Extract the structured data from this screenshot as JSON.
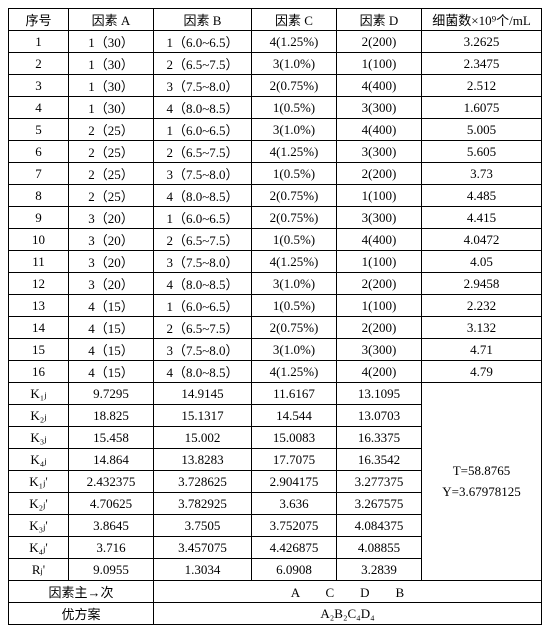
{
  "header": [
    "序号",
    "因素 A",
    "因素 B",
    "因素 C",
    "因素 D",
    "细菌数×10⁹个/mL"
  ],
  "rows": [
    [
      "1",
      "1（30）",
      "1（6.0~6.5）",
      "4(1.25%)",
      "2(200)",
      "3.2625"
    ],
    [
      "2",
      "1（30）",
      "2（6.5~7.5）",
      "3(1.0%)",
      "1(100)",
      "2.3475"
    ],
    [
      "3",
      "1（30）",
      "3（7.5~8.0）",
      "2(0.75%)",
      "4(400)",
      "2.512"
    ],
    [
      "4",
      "1（30）",
      "4（8.0~8.5）",
      "1(0.5%)",
      "3(300)",
      "1.6075"
    ],
    [
      "5",
      "2（25）",
      "1（6.0~6.5）",
      "3(1.0%)",
      "4(400)",
      "5.005"
    ],
    [
      "6",
      "2（25）",
      "2（6.5~7.5）",
      "4(1.25%)",
      "3(300)",
      "5.605"
    ],
    [
      "7",
      "2（25）",
      "3（7.5~8.0）",
      "1(0.5%)",
      "2(200)",
      "3.73"
    ],
    [
      "8",
      "2（25）",
      "4（8.0~8.5）",
      "2(0.75%)",
      "1(100)",
      "4.485"
    ],
    [
      "9",
      "3（20）",
      "1（6.0~6.5）",
      "2(0.75%)",
      "3(300)",
      "4.415"
    ],
    [
      "10",
      "3（20）",
      "2（6.5~7.5）",
      "1(0.5%)",
      "4(400)",
      "4.0472"
    ],
    [
      "11",
      "3（20）",
      "3（7.5~8.0）",
      "4(1.25%)",
      "1(100)",
      "4.05"
    ],
    [
      "12",
      "3（20）",
      "4（8.0~8.5）",
      "3(1.0%)",
      "2(200)",
      "2.9458"
    ],
    [
      "13",
      "4（15）",
      "1（6.0~6.5）",
      "1(0.5%)",
      "1(100)",
      "2.232"
    ],
    [
      "14",
      "4（15）",
      "2（6.5~7.5）",
      "2(0.75%)",
      "2(200)",
      "3.132"
    ],
    [
      "15",
      "4（15）",
      "3（7.5~8.0）",
      "3(1.0%)",
      "3(300)",
      "4.71"
    ],
    [
      "16",
      "4（15）",
      "4（8.0~8.5）",
      "4(1.25%)",
      "4(200)",
      "4.79"
    ]
  ],
  "krows": [
    {
      "label": "K₁ⱼ",
      "vals": [
        "9.7295",
        "14.9145",
        "11.6167",
        "13.1095"
      ]
    },
    {
      "label": "K₂ⱼ",
      "vals": [
        "18.825",
        "15.1317",
        "14.544",
        "13.0703"
      ]
    },
    {
      "label": "K₃ⱼ",
      "vals": [
        "15.458",
        "15.002",
        "15.0083",
        "16.3375"
      ]
    },
    {
      "label": "K₄ⱼ",
      "vals": [
        "14.864",
        "13.8283",
        "17.7075",
        "16.3542"
      ]
    },
    {
      "label": "K₁ⱼ'",
      "vals": [
        "2.432375",
        "3.728625",
        "2.904175",
        "3.277375"
      ]
    },
    {
      "label": "K₂ⱼ'",
      "vals": [
        "4.70625",
        "3.782925",
        "3.636",
        "3.267575"
      ]
    },
    {
      "label": "K₃ⱼ'",
      "vals": [
        "3.8645",
        "3.7505",
        "3.752075",
        "4.084375"
      ]
    },
    {
      "label": "K₄ⱼ'",
      "vals": [
        "3.716",
        "3.457075",
        "4.426875",
        "4.08855"
      ]
    },
    {
      "label": "Rⱼ'",
      "vals": [
        "9.0955",
        "1.3034",
        "6.0908",
        "3.2839"
      ]
    }
  ],
  "summary": {
    "T": "T=58.8765",
    "Y": "Y=3.67978125"
  },
  "footer1_label": "因素主→次",
  "footer1_val": "A　　C　　D　　B",
  "footer2_label": "优方案",
  "footer2_val": "A₂B₂C₄D₄",
  "widths": {
    "c0": 60,
    "c1": 85,
    "c2": 98,
    "c3": 85,
    "c4": 85,
    "c5": 120
  }
}
